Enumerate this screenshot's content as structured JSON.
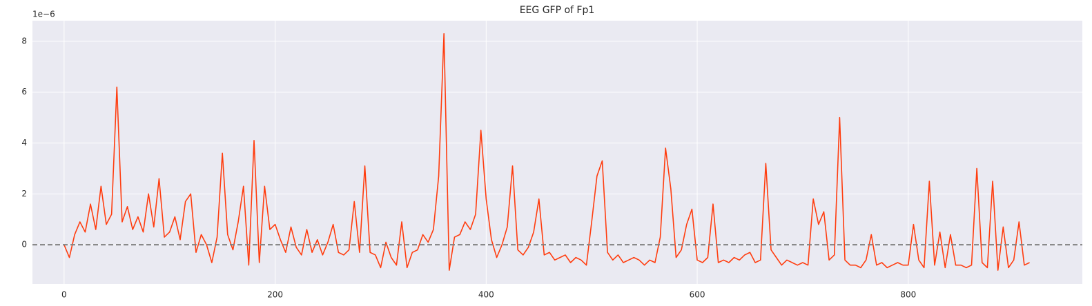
{
  "chart_data": {
    "type": "line",
    "title": "EEG GFP of Fp1",
    "y_offset_label": "1e−6",
    "x": [
      0,
      5,
      10,
      15,
      20,
      25,
      30,
      35,
      40,
      45,
      50,
      55,
      60,
      65,
      70,
      75,
      80,
      85,
      90,
      95,
      100,
      105,
      110,
      115,
      120,
      125,
      130,
      135,
      140,
      145,
      150,
      155,
      160,
      165,
      170,
      175,
      180,
      185,
      190,
      195,
      200,
      205,
      210,
      215,
      220,
      225,
      230,
      235,
      240,
      245,
      250,
      255,
      260,
      265,
      270,
      275,
      280,
      285,
      290,
      295,
      300,
      305,
      310,
      315,
      320,
      325,
      330,
      335,
      340,
      345,
      350,
      355,
      360,
      365,
      370,
      375,
      380,
      385,
      390,
      395,
      400,
      405,
      410,
      415,
      420,
      425,
      430,
      435,
      440,
      445,
      450,
      455,
      460,
      465,
      470,
      475,
      480,
      485,
      490,
      495,
      500,
      505,
      510,
      515,
      520,
      525,
      530,
      535,
      540,
      545,
      550,
      555,
      560,
      565,
      570,
      575,
      580,
      585,
      590,
      595,
      600,
      605,
      610,
      615,
      620,
      625,
      630,
      635,
      640,
      645,
      650,
      655,
      660,
      665,
      670,
      675,
      680,
      685,
      690,
      695,
      700,
      705,
      710,
      715,
      720,
      725,
      730,
      735,
      740,
      745,
      750,
      755,
      760,
      765,
      770,
      775,
      780,
      785,
      790,
      795,
      800,
      805,
      810,
      815,
      820,
      825,
      830,
      835,
      840,
      845,
      850,
      855,
      860,
      865,
      870,
      875,
      880,
      885,
      890,
      895,
      900,
      905,
      910,
      915
    ],
    "series": [
      {
        "name": "GFP",
        "color": "#ff3d0f",
        "values": [
          0,
          -0.5,
          0.4,
          0.9,
          0.5,
          1.6,
          0.6,
          2.3,
          0.8,
          1.2,
          6.2,
          0.9,
          1.5,
          0.6,
          1.1,
          0.5,
          2.0,
          0.7,
          2.6,
          0.3,
          0.5,
          1.1,
          0.2,
          1.7,
          2.0,
          -0.3,
          0.4,
          0.0,
          -0.7,
          0.3,
          3.6,
          0.4,
          -0.2,
          0.9,
          2.3,
          -0.8,
          4.1,
          -0.7,
          2.3,
          0.6,
          0.8,
          0.2,
          -0.3,
          0.7,
          -0.1,
          -0.4,
          0.6,
          -0.3,
          0.2,
          -0.4,
          0.1,
          0.8,
          -0.3,
          -0.4,
          -0.2,
          1.7,
          -0.3,
          3.1,
          -0.3,
          -0.4,
          -0.9,
          0.1,
          -0.5,
          -0.8,
          0.9,
          -0.9,
          -0.3,
          -0.2,
          0.4,
          0.1,
          0.6,
          2.7,
          8.3,
          -1.0,
          0.3,
          0.4,
          0.9,
          0.6,
          1.2,
          4.5,
          1.8,
          0.2,
          -0.5,
          0.0,
          0.7,
          3.1,
          -0.2,
          -0.4,
          -0.1,
          0.5,
          1.8,
          -0.4,
          -0.3,
          -0.6,
          -0.5,
          -0.4,
          -0.7,
          -0.5,
          -0.6,
          -0.8,
          0.9,
          2.7,
          3.3,
          -0.3,
          -0.6,
          -0.4,
          -0.7,
          -0.6,
          -0.5,
          -0.6,
          -0.8,
          -0.6,
          -0.7,
          0.3,
          3.8,
          2.2,
          -0.5,
          -0.2,
          0.8,
          1.4,
          -0.6,
          -0.7,
          -0.5,
          1.6,
          -0.7,
          -0.6,
          -0.7,
          -0.5,
          -0.6,
          -0.4,
          -0.3,
          -0.7,
          -0.6,
          3.2,
          -0.2,
          -0.5,
          -0.8,
          -0.6,
          -0.7,
          -0.8,
          -0.7,
          -0.8,
          1.8,
          0.8,
          1.3,
          -0.6,
          -0.4,
          5.0,
          -0.6,
          -0.8,
          -0.8,
          -0.9,
          -0.6,
          0.4,
          -0.8,
          -0.7,
          -0.9,
          -0.8,
          -0.7,
          -0.8,
          -0.8,
          0.8,
          -0.6,
          -0.9,
          2.5,
          -0.8,
          0.5,
          -0.9,
          0.4,
          -0.8,
          -0.8,
          -0.9,
          -0.8,
          3.0,
          -0.7,
          -0.9,
          2.5,
          -1.0,
          0.7,
          -0.9,
          -0.6,
          0.9,
          -0.8,
          -0.7
        ]
      }
    ],
    "reference_line": {
      "value": 0,
      "color": "#808080",
      "style": "dashed"
    },
    "xlim": [
      -30,
      965
    ],
    "xticks": [
      0,
      200,
      400,
      600,
      800
    ],
    "ylim": [
      -1.54,
      8.81
    ],
    "yticks": [
      0,
      2,
      4,
      6,
      8
    ],
    "grid": true,
    "background": "#eaeaf2"
  }
}
